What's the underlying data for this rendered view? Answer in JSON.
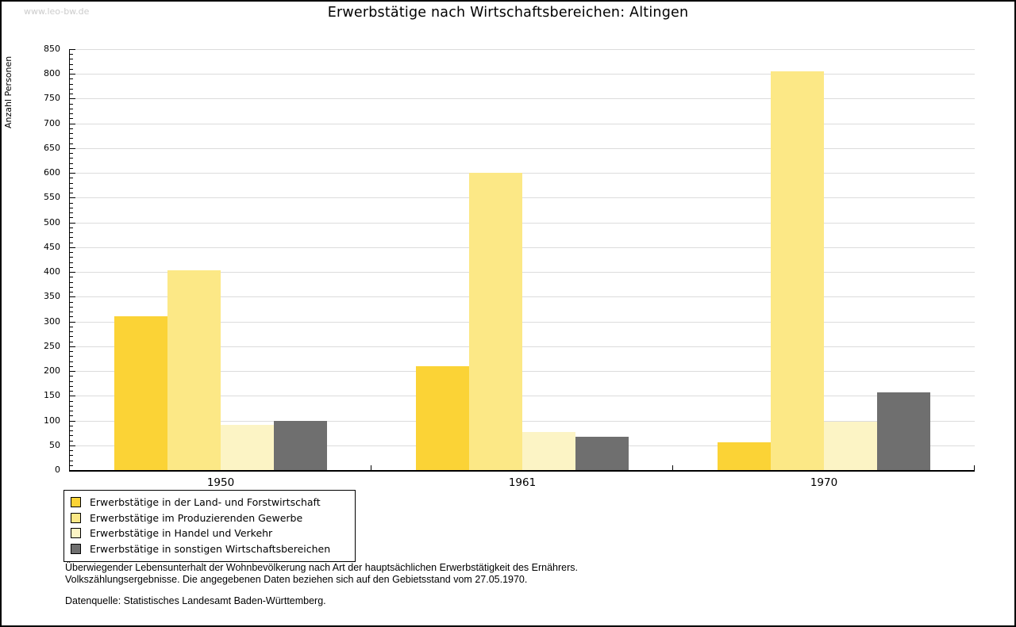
{
  "watermark": "www.leo-bw.de",
  "chart_data": {
    "type": "bar",
    "title": "Erwerbstätige nach Wirtschaftsbereichen: Altingen",
    "ylabel": "Anzahl Personen",
    "xlabel": "",
    "ylim": [
      0,
      850
    ],
    "ytick_major": 50,
    "ytick_minor": 10,
    "grid": "horizontal-major",
    "legend_position": "bottom-left",
    "categories": [
      "1950",
      "1961",
      "1970"
    ],
    "series": [
      {
        "id": "land-forstwirtschaft",
        "name": "Erwerbstätige in der Land- und Forstwirtschaft",
        "color": "#FBD336",
        "values": [
          311,
          210,
          56
        ]
      },
      {
        "id": "produzierendes-gewerbe",
        "name": "Erwerbstätige im Produzierenden Gewerbe",
        "color": "#FCE886",
        "values": [
          404,
          600,
          805
        ]
      },
      {
        "id": "handel-verkehr",
        "name": "Erwerbstätige in Handel und Verkehr",
        "color": "#FCF4C5",
        "values": [
          92,
          77,
          97
        ]
      },
      {
        "id": "sonstige",
        "name": "Erwerbstätige in sonstigen Wirtschaftsbereichen",
        "color": "#6F6F6F",
        "values": [
          100,
          67,
          157
        ]
      }
    ]
  },
  "footnote": {
    "line1": "Überwiegender Lebensunterhalt der Wohnbevölkerung nach Art der hauptsächlichen Erwerbstätigkeit des Ernährers.",
    "line2": "Volkszählungsergebnisse. Die angegebenen Daten beziehen sich auf den Gebietsstand vom 27.05.1970.",
    "source": "Datenquelle: Statistisches Landesamt Baden-Württemberg."
  },
  "colors": {
    "gridline": "#DCDCDC",
    "axis": "#000000",
    "watermark": "#CCCCCC",
    "background": "#FFFFFF"
  }
}
